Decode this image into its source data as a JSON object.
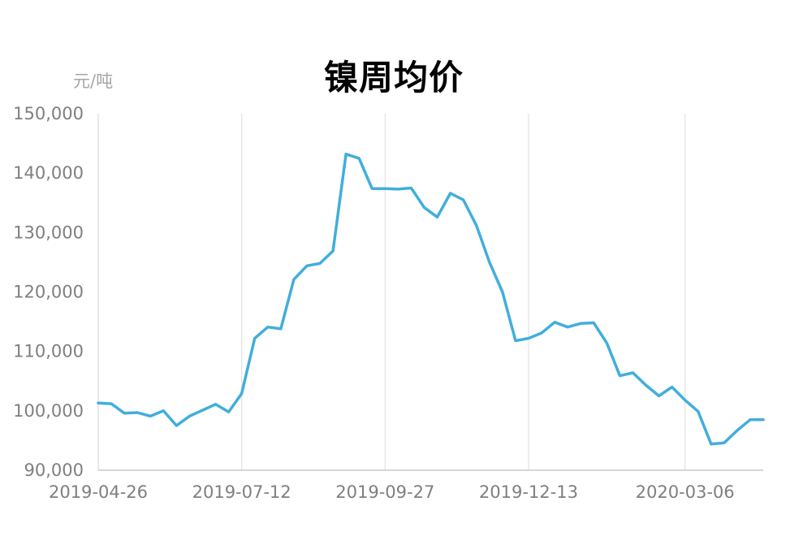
{
  "chart_data": {
    "type": "line",
    "title": "镍周均价",
    "ylabel": "元/吨",
    "xlabel": "",
    "ylim": [
      90000,
      150000
    ],
    "y_ticks": [
      "150,000",
      "140,000",
      "130,000",
      "120,000",
      "110,000",
      "100,000",
      "90,000"
    ],
    "x_tick_labels": [
      "2019-04-26",
      "2019-07-12",
      "2019-09-27",
      "2019-12-13",
      "2020-03-06"
    ],
    "grid": "vertical",
    "legend": "none",
    "line_color": "#41aedc",
    "x": [
      "2019-04-26",
      "2019-05-03",
      "2019-05-10",
      "2019-05-17",
      "2019-05-24",
      "2019-05-31",
      "2019-06-07",
      "2019-06-14",
      "2019-06-21",
      "2019-06-28",
      "2019-07-05",
      "2019-07-12",
      "2019-07-19",
      "2019-07-26",
      "2019-08-02",
      "2019-08-09",
      "2019-08-16",
      "2019-08-23",
      "2019-08-30",
      "2019-09-06",
      "2019-09-13",
      "2019-09-20",
      "2019-09-27",
      "2019-10-04",
      "2019-10-11",
      "2019-10-18",
      "2019-10-25",
      "2019-11-01",
      "2019-11-08",
      "2019-11-15",
      "2019-11-22",
      "2019-11-29",
      "2019-12-06",
      "2019-12-13",
      "2019-12-20",
      "2019-12-27",
      "2020-01-03",
      "2020-01-10",
      "2020-01-17",
      "2020-01-24",
      "2020-01-31",
      "2020-02-07",
      "2020-02-14",
      "2020-02-21",
      "2020-02-28",
      "2020-03-06",
      "2020-03-13",
      "2020-03-20",
      "2020-03-27",
      "2020-04-03",
      "2020-04-10",
      "2020-04-17"
    ],
    "series": [
      {
        "values": [
          101300,
          101200,
          99600,
          99700,
          99100,
          100000,
          97500,
          99100,
          100100,
          101100,
          99800,
          102900,
          112200,
          114100,
          113800,
          122100,
          124400,
          124800,
          126900,
          143200,
          142500,
          137400,
          137400,
          137300,
          137500,
          134200,
          132600,
          136600,
          135500,
          131200,
          125000,
          120000,
          111800,
          112200,
          113100,
          114900,
          114100,
          114700,
          114800,
          111400,
          105900,
          106400,
          104300,
          102500,
          104000,
          101800,
          99900,
          94400,
          94600,
          96700,
          98500,
          98500
        ]
      }
    ]
  }
}
